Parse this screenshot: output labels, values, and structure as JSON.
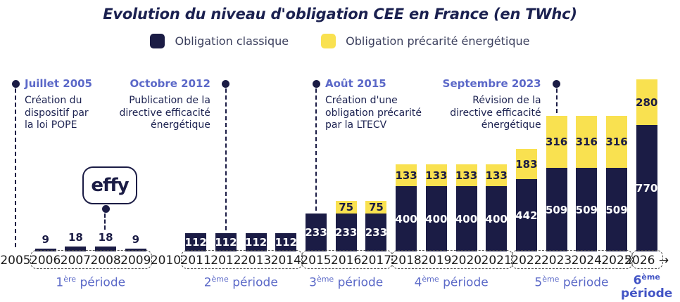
{
  "chart_data": {
    "type": "bar",
    "stacked": true,
    "title": "Evolution du niveau d'obligation CEE en France (en TWhc)",
    "unit": "TWhc",
    "grid": false,
    "legend_position": "top",
    "ylim": [
      0,
      1050
    ],
    "categories": [
      "2006",
      "2007",
      "2008",
      "2009",
      "2011",
      "2012",
      "2013",
      "2014",
      "2015",
      "2016",
      "2017",
      "2018",
      "2019",
      "2020",
      "2021",
      "2022",
      "2023",
      "2024",
      "2025",
      "2026"
    ],
    "series": [
      {
        "name": "Obligation classique",
        "color": "#1b1c45",
        "values": [
          9,
          18,
          18,
          9,
          112,
          112,
          112,
          112,
          233,
          233,
          233,
          400,
          400,
          400,
          400,
          442,
          509,
          509,
          509,
          770
        ]
      },
      {
        "name": "Obligation précarité énergétique",
        "color": "#f9e150",
        "values": [
          0,
          0,
          0,
          0,
          0,
          0,
          0,
          0,
          0,
          75,
          75,
          133,
          133,
          133,
          133,
          183,
          316,
          316,
          316,
          280
        ]
      }
    ]
  },
  "logo": {
    "text": "effy"
  },
  "events": [
    {
      "year": 2005,
      "date": "Juillet 2005",
      "align": "left",
      "lines": [
        "Création du",
        "dispositif par",
        "la loi POPE"
      ]
    },
    {
      "year": 2012,
      "date": "Octobre 2012",
      "align": "right",
      "lines": [
        "Publication de la",
        "directive efficacité",
        "énergétique"
      ]
    },
    {
      "year": 2015,
      "date": "Août 2015",
      "align": "left",
      "lines": [
        "Création d'une",
        "obligation précarité",
        "par la LTECV"
      ]
    },
    {
      "year": 2023,
      "date": "Septembre 2023",
      "align": "right",
      "lines": [
        "Révision de la",
        "directive efficacité",
        "énergétique"
      ]
    }
  ],
  "axis": {
    "items": [
      {
        "type": "year",
        "year": 2005,
        "label": "2005"
      },
      {
        "type": "group",
        "first": 2006,
        "last": 2009,
        "labels": [
          "2006",
          "2007",
          "2008",
          "2009"
        ],
        "period": {
          "num": "1",
          "sup": "ère",
          "word": "période",
          "bold": false,
          "two_line": false
        }
      },
      {
        "type": "year",
        "year": 2010,
        "label": "2010"
      },
      {
        "type": "group",
        "first": 2011,
        "last": 2014,
        "labels": [
          "2011",
          "2012",
          "2013",
          "2014"
        ],
        "period": {
          "num": "2",
          "sup": "ème",
          "word": "période",
          "bold": false,
          "two_line": false
        }
      },
      {
        "type": "group",
        "first": 2015,
        "last": 2017,
        "labels": [
          "2015",
          "2016",
          "2017"
        ],
        "period": {
          "num": "3",
          "sup": "ème",
          "word": "période",
          "bold": false,
          "two_line": false
        }
      },
      {
        "type": "group",
        "first": 2018,
        "last": 2021,
        "labels": [
          "2018",
          "2019",
          "2020",
          "2021"
        ],
        "period": {
          "num": "4",
          "sup": "ème",
          "word": "période",
          "bold": false,
          "two_line": false
        }
      },
      {
        "type": "group",
        "first": 2022,
        "last": 2025,
        "labels": [
          "2022",
          "2023",
          "2024",
          "2025"
        ],
        "period": {
          "num": "5",
          "sup": "ème",
          "word": "période",
          "bold": false,
          "two_line": false
        }
      },
      {
        "type": "group",
        "first": 2026,
        "last": 2026,
        "labels": [
          "2026 →"
        ],
        "period": {
          "num": "6",
          "sup": "ème",
          "word": "période",
          "bold": true,
          "two_line": true
        }
      }
    ]
  },
  "palette": {
    "navy": "#1b1c45",
    "yellow": "#f9e150",
    "period_blue": "#5c6ac8",
    "period_blue_bold": "#4254c5",
    "body_text": "#1b2150",
    "year_text": "#1c1c1c"
  }
}
